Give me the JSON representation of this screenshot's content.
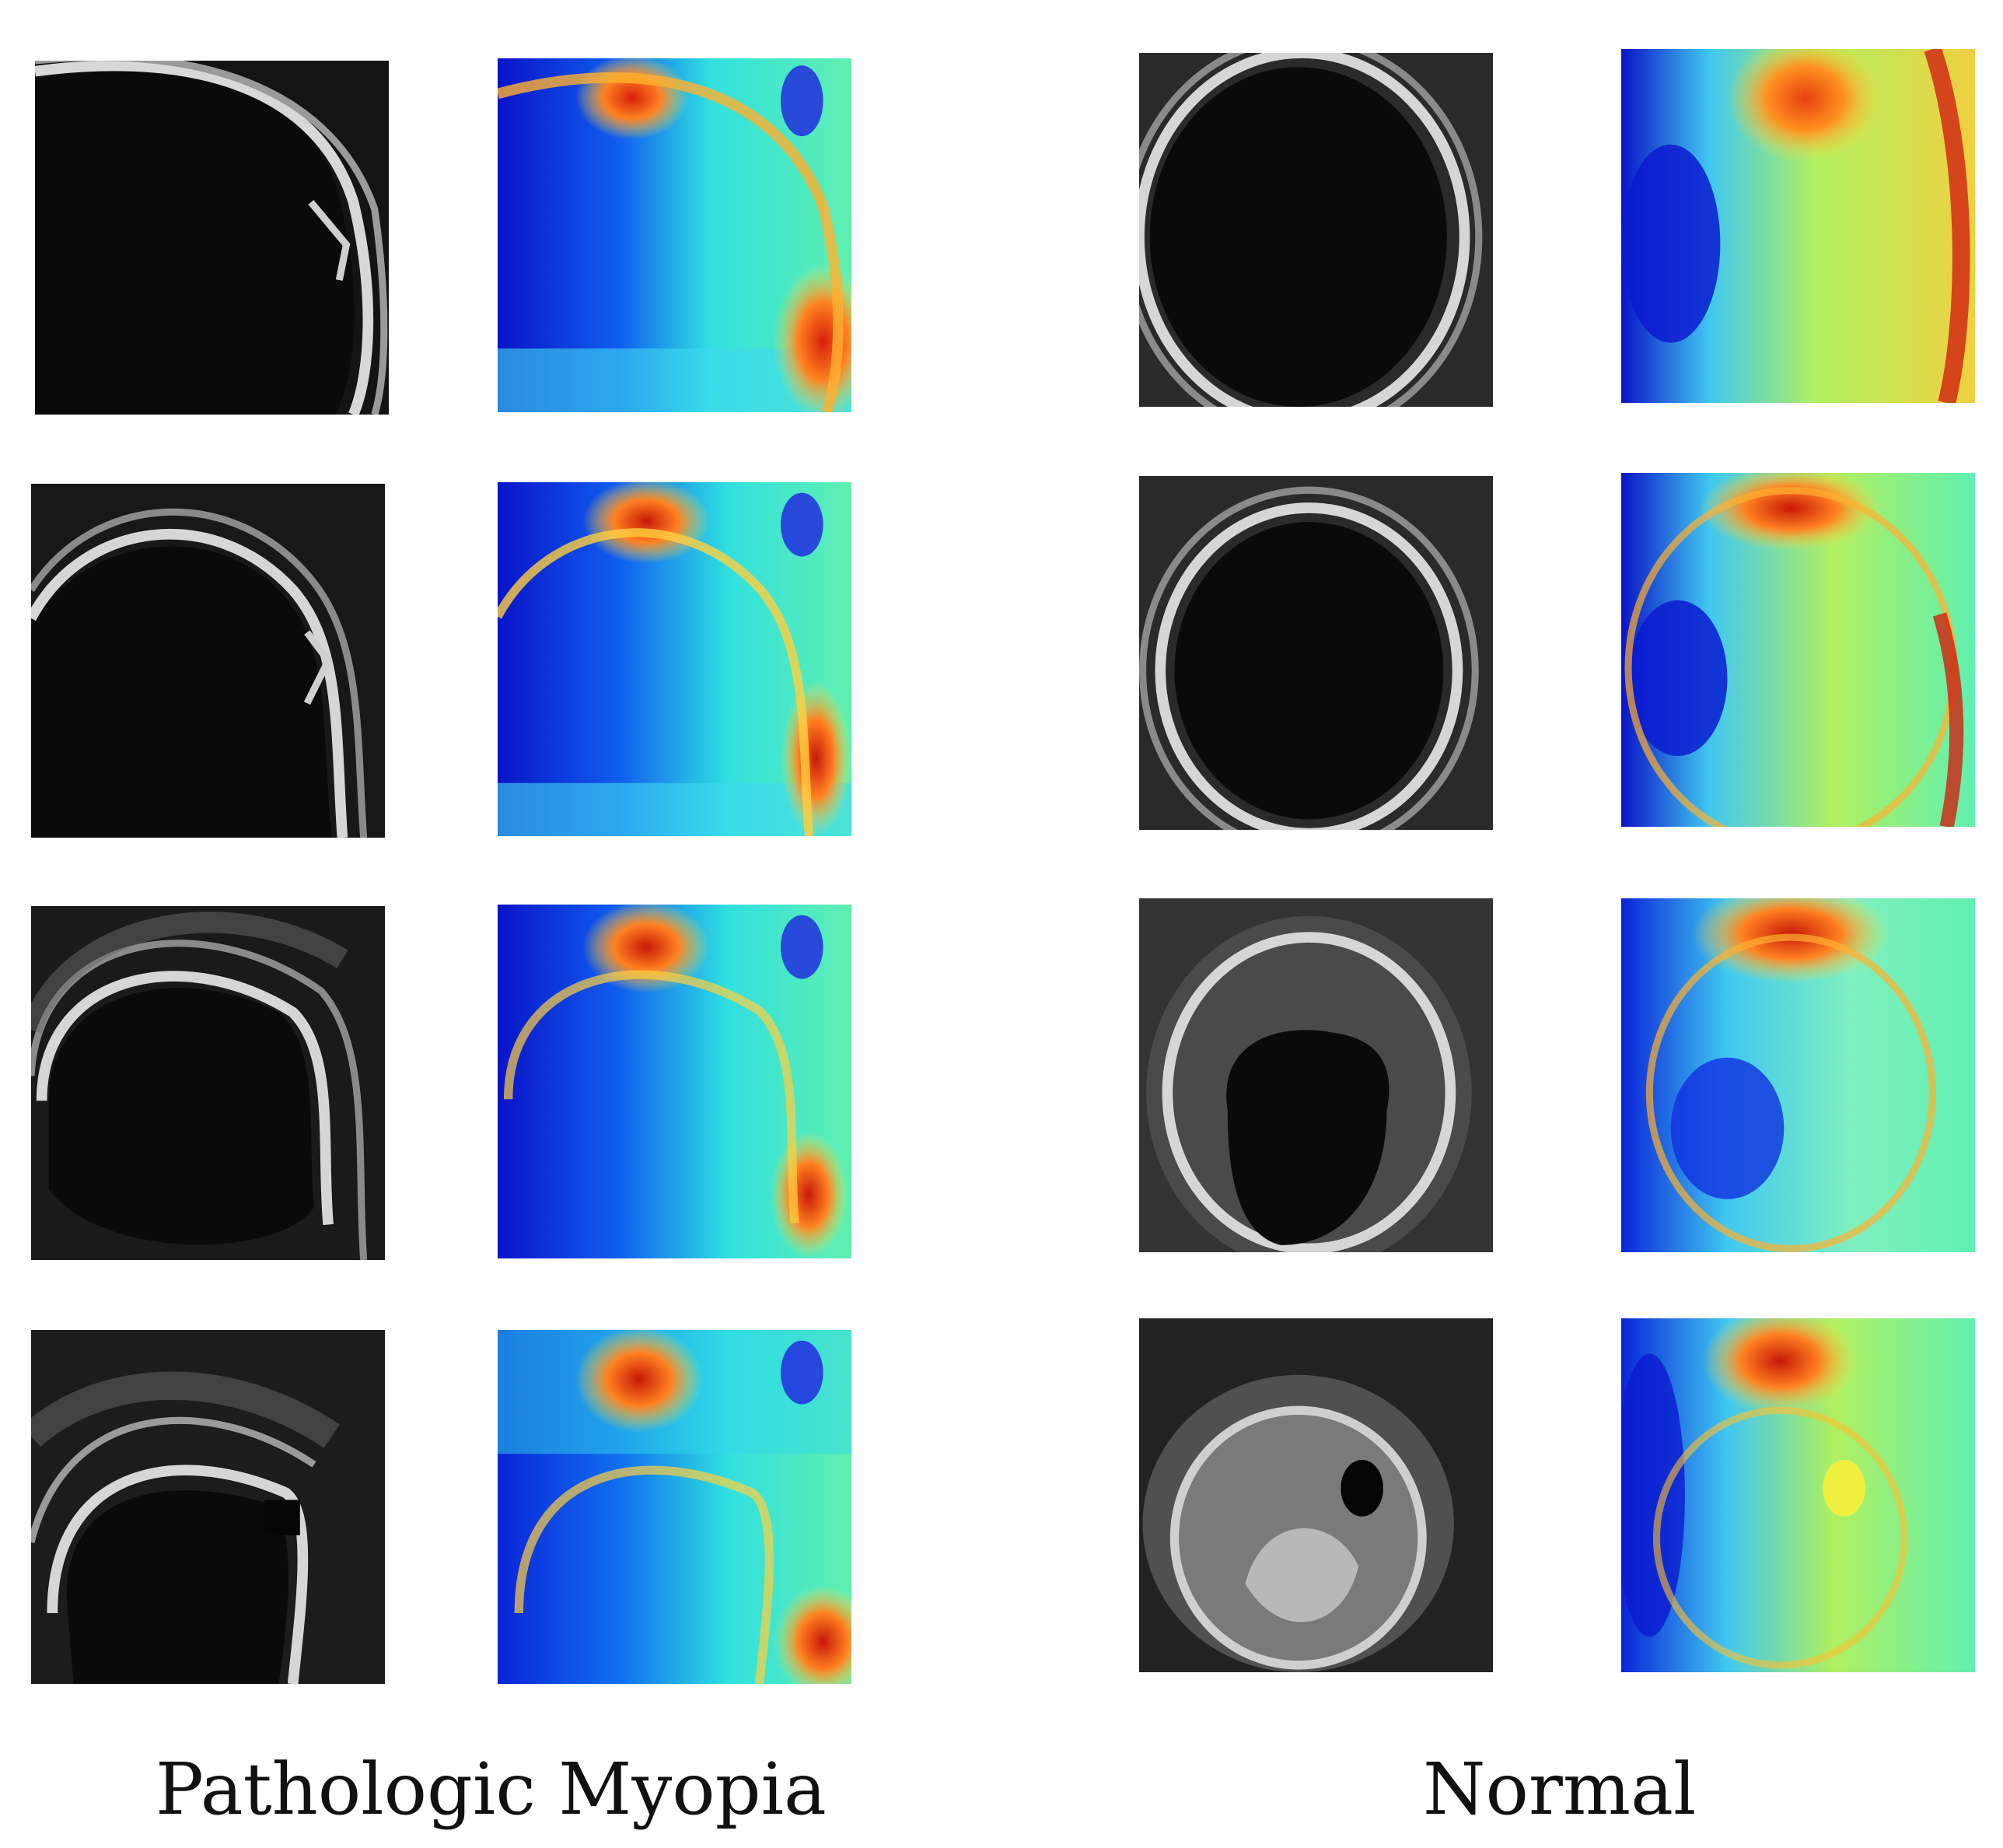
{
  "figure": {
    "groups": [
      {
        "label": "Pathologic Myopia"
      },
      {
        "label": "Normal"
      }
    ],
    "rows_per_group": 4,
    "panel_kinds": [
      "grayscale-oct-scan",
      "jet-colormap-heatmap"
    ],
    "colors": {
      "background": "#ffffff",
      "scan_dark": "#0d0d0d",
      "scan_bright": "#e6e6e6",
      "heat_low": "#0a14c8",
      "heat_mid": "#30e0c0",
      "heat_high": "#d8200a"
    }
  }
}
